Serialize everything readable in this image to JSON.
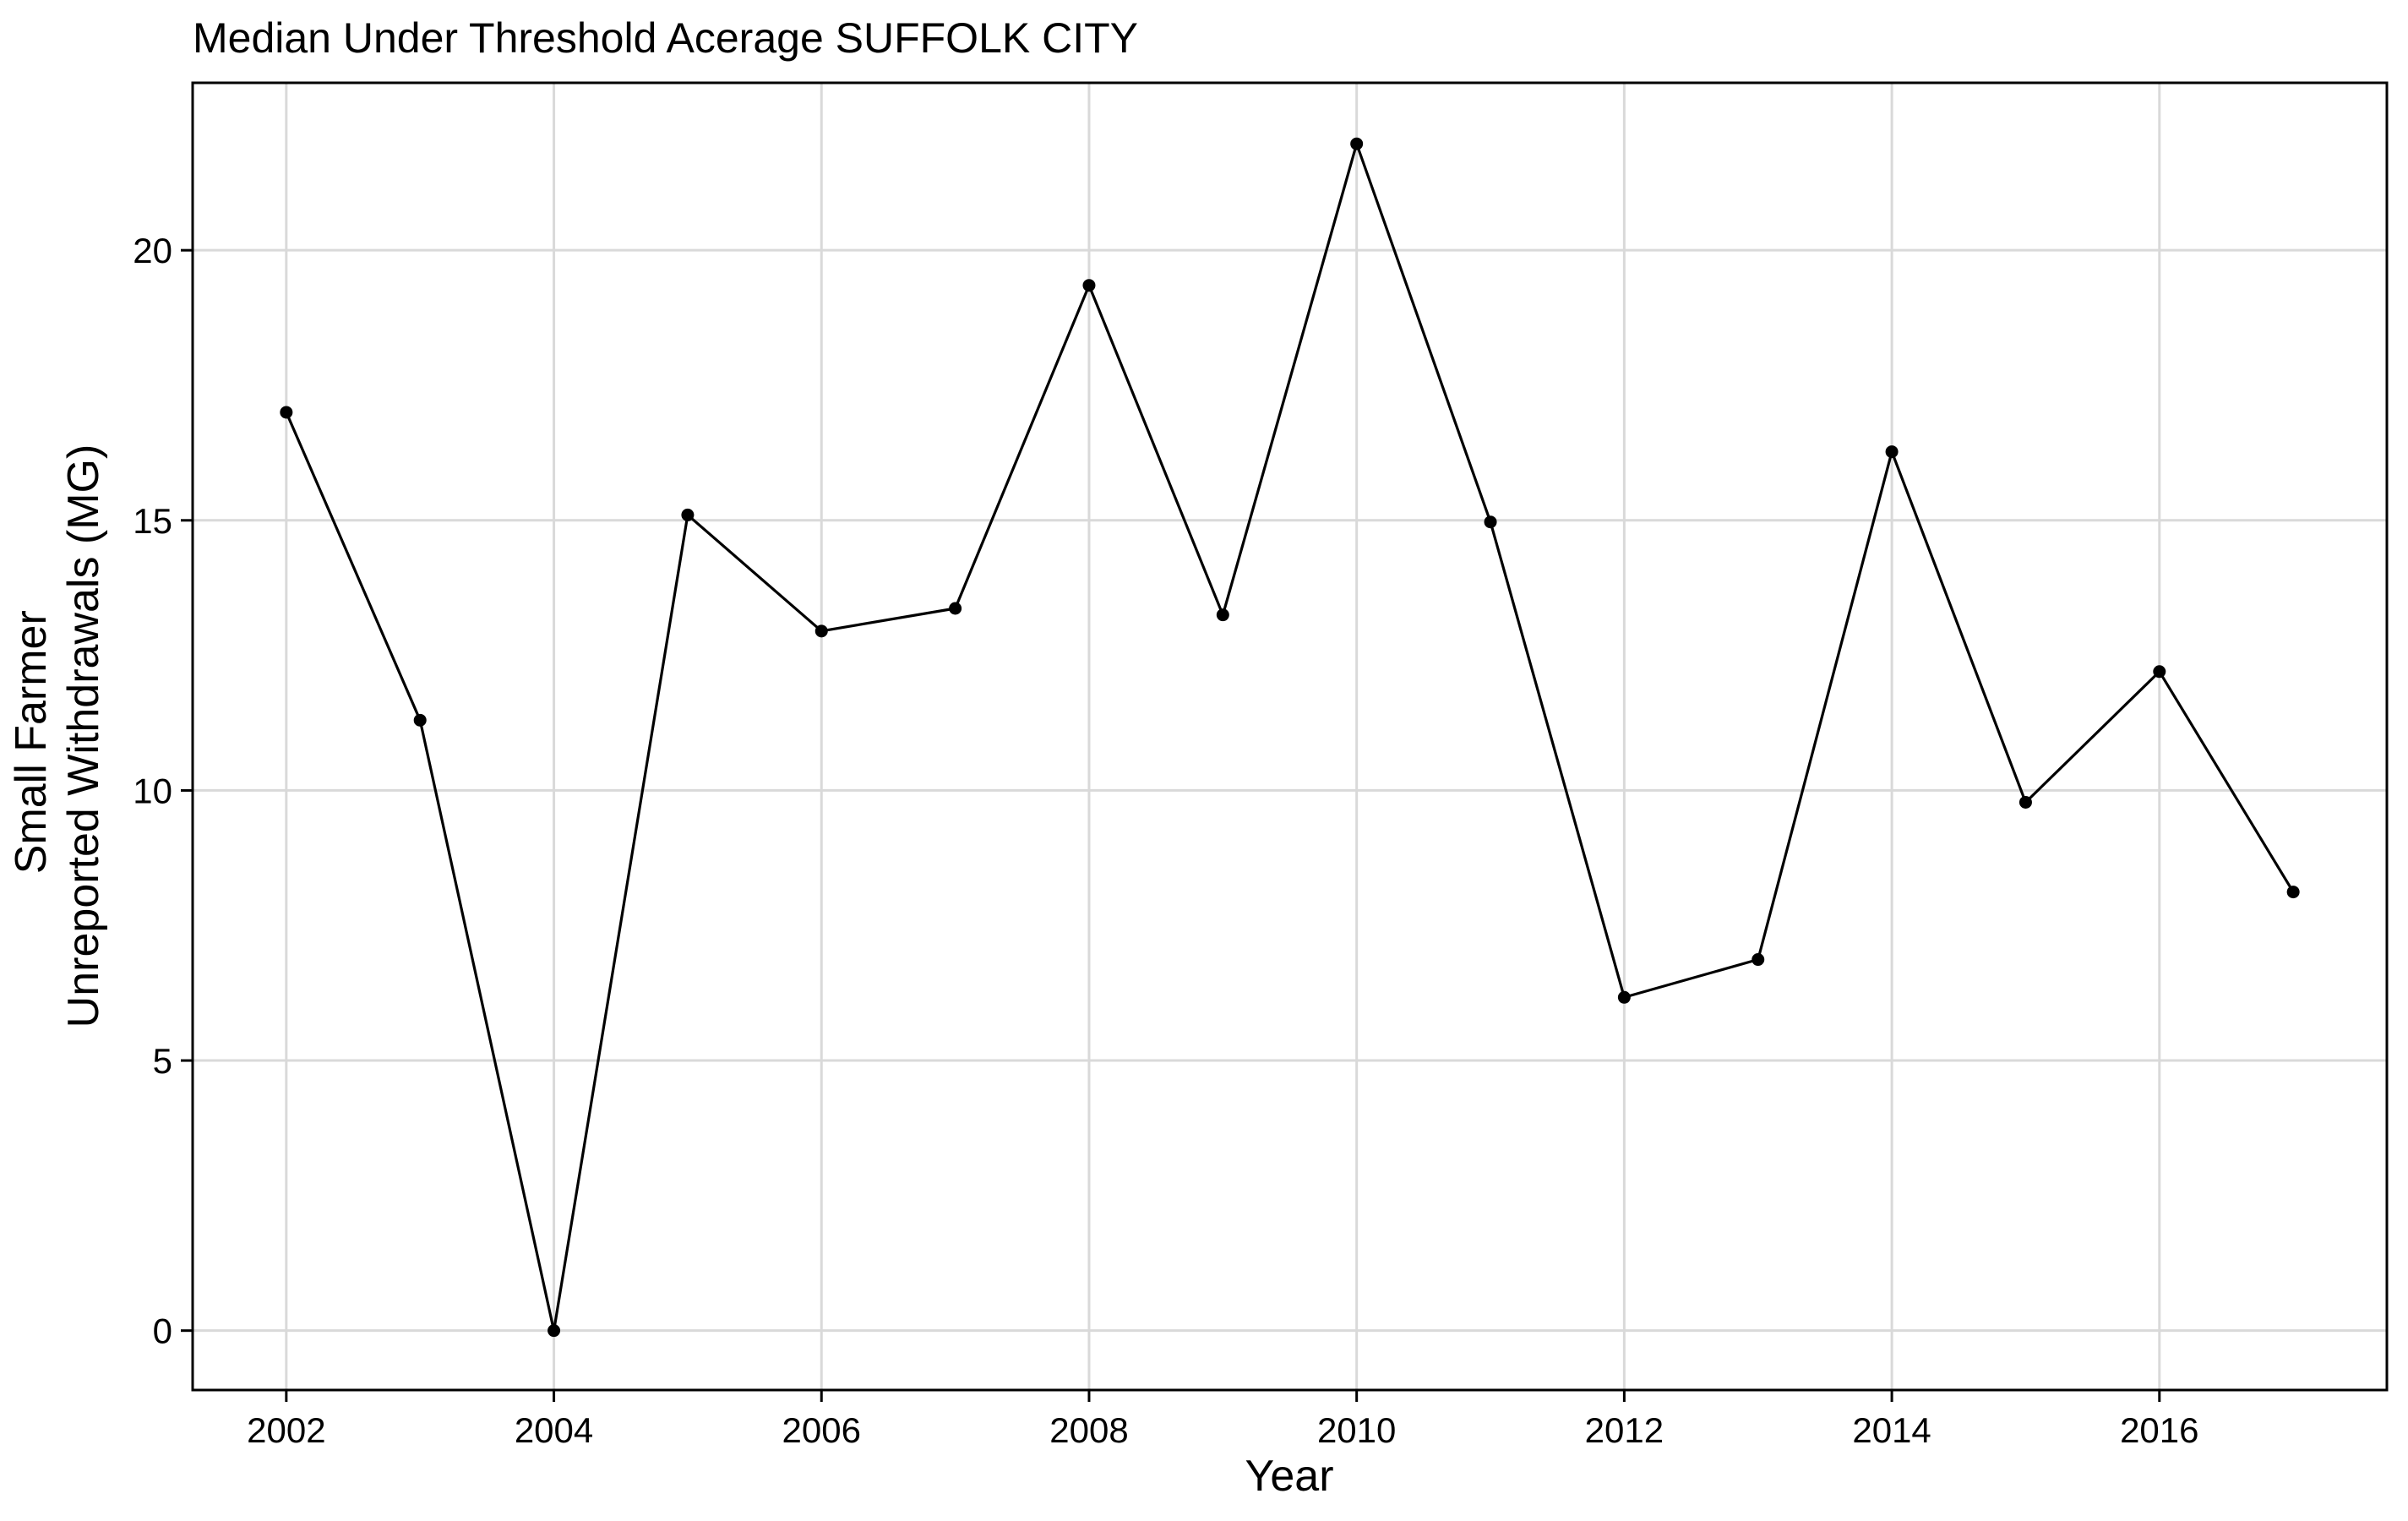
{
  "chart_data": {
    "type": "line",
    "title": "Median Under Threshold Acerage SUFFOLK CITY",
    "xlabel": "Year",
    "ylabel_lines": [
      "Small Farmer",
      "Unreported Withdrawals (MG)"
    ],
    "x": [
      2002,
      2003,
      2004,
      2005,
      2006,
      2007,
      2008,
      2009,
      2010,
      2011,
      2012,
      2013,
      2014,
      2015,
      2016,
      2017
    ],
    "series": [
      {
        "values": [
          17.0,
          11.3,
          0.0,
          15.1,
          12.95,
          13.37,
          19.35,
          13.25,
          21.97,
          14.97,
          6.17,
          6.87,
          16.27,
          9.78,
          12.2,
          8.12
        ]
      }
    ],
    "xticks": [
      "2002",
      "2004",
      "2006",
      "2008",
      "2010",
      "2012",
      "2014",
      "2016"
    ],
    "yticks": [
      "0",
      "5",
      "10",
      "15",
      "20"
    ],
    "xlim": [
      2001.3,
      2017.7
    ],
    "ylim": [
      -1.1,
      23.1
    ],
    "grid": true,
    "legend": "none",
    "line_color": "#000000",
    "grid_color": "#d9d9d9"
  }
}
